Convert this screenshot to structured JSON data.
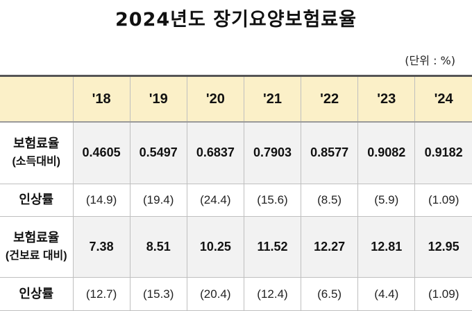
{
  "title": "2024년도  장기요양보험료율",
  "unit": "(단위 : %)",
  "chart_data": {
    "type": "table",
    "columns": [
      "'18",
      "'19",
      "'20",
      "'21",
      "'22",
      "'23",
      "'24"
    ],
    "rows": [
      {
        "label": "보험료율",
        "sublabel": "(소득대비)",
        "kind": "rate",
        "values": [
          "0.4605",
          "0.5497",
          "0.6837",
          "0.7903",
          "0.8577",
          "0.9082",
          "0.9182"
        ]
      },
      {
        "label": "인상률",
        "sublabel": "",
        "kind": "inc",
        "values": [
          "(14.9)",
          "(19.4)",
          "(24.4)",
          "(15.6)",
          "(8.5)",
          "(5.9)",
          "(1.09)"
        ]
      },
      {
        "label": "보험료율",
        "sublabel": "(건보료 대비)",
        "kind": "rate",
        "values": [
          "7.38",
          "8.51",
          "10.25",
          "11.52",
          "12.27",
          "12.81",
          "12.95"
        ]
      },
      {
        "label": "인상률",
        "sublabel": "",
        "kind": "inc",
        "values": [
          "(12.7)",
          "(15.3)",
          "(20.4)",
          "(12.4)",
          "(6.5)",
          "(4.4)",
          "(1.09)"
        ]
      }
    ]
  }
}
